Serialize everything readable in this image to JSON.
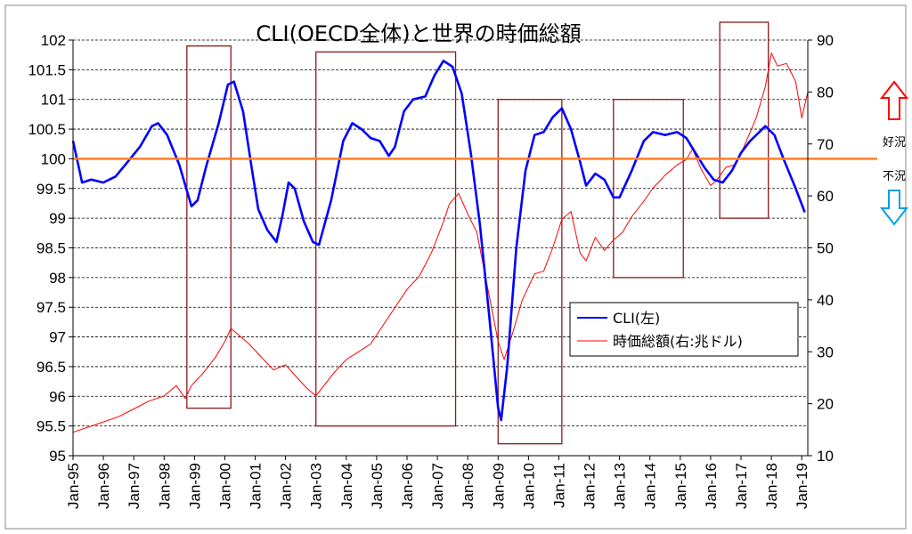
{
  "chart_data": {
    "type": "line",
    "title": "CLI(OECD全体)と世界の時価総額",
    "x_tick_labels": [
      "Jan-95",
      "Jan-96",
      "Jan-97",
      "Jan-98",
      "Jan-99",
      "Jan-00",
      "Jan-01",
      "Jan-02",
      "Jan-03",
      "Jan-04",
      "Jan-05",
      "Jan-06",
      "Jan-07",
      "Jan-08",
      "Jan-09",
      "Jan-10",
      "Jan-11",
      "Jan-12",
      "Jan-13",
      "Jan-14",
      "Jan-15",
      "Jan-16",
      "Jan-17",
      "Jan-18",
      "Jan-19"
    ],
    "left_axis": {
      "min": 95,
      "max": 102,
      "ticks": [
        "95",
        "95.5",
        "96",
        "96.5",
        "97",
        "97.5",
        "98",
        "98.5",
        "99",
        "99.5",
        "100",
        "100.5",
        "101",
        "101.5",
        "102"
      ]
    },
    "right_axis": {
      "min": 10,
      "max": 90,
      "ticks": [
        "10",
        "20",
        "30",
        "40",
        "50",
        "60",
        "70",
        "80",
        "90"
      ]
    },
    "grid": "horizontal-dashed",
    "legend": {
      "position": "center-right",
      "entries": [
        "CLI(左)",
        "時価総額(右:兆ドル)"
      ]
    },
    "reference_line": {
      "value": 100,
      "color": "#ff7f27"
    },
    "side_labels": {
      "up": "好況",
      "down": "不況"
    },
    "colors": {
      "cli": "#0000ff",
      "market_cap": "#ff0000",
      "boxes": "#8b1a1a",
      "up_arrow": "#ff0000",
      "down_arrow": "#00a0e9"
    },
    "series": [
      {
        "name": "CLI(左)",
        "axis": "left",
        "points": [
          [
            1995.0,
            100.3
          ],
          [
            1995.3,
            99.6
          ],
          [
            1995.6,
            99.65
          ],
          [
            1996.0,
            99.6
          ],
          [
            1996.4,
            99.7
          ],
          [
            1996.8,
            99.95
          ],
          [
            1997.2,
            100.2
          ],
          [
            1997.6,
            100.55
          ],
          [
            1997.8,
            100.6
          ],
          [
            1998.1,
            100.4
          ],
          [
            1998.5,
            99.9
          ],
          [
            1998.9,
            99.2
          ],
          [
            1999.1,
            99.3
          ],
          [
            1999.4,
            99.9
          ],
          [
            1999.8,
            100.6
          ],
          [
            2000.1,
            101.25
          ],
          [
            2000.3,
            101.3
          ],
          [
            2000.6,
            100.8
          ],
          [
            2000.9,
            99.8
          ],
          [
            2001.1,
            99.15
          ],
          [
            2001.4,
            98.8
          ],
          [
            2001.7,
            98.6
          ],
          [
            2001.9,
            99.05
          ],
          [
            2002.1,
            99.6
          ],
          [
            2002.3,
            99.5
          ],
          [
            2002.6,
            98.95
          ],
          [
            2002.9,
            98.6
          ],
          [
            2003.1,
            98.55
          ],
          [
            2003.5,
            99.3
          ],
          [
            2003.9,
            100.3
          ],
          [
            2004.2,
            100.6
          ],
          [
            2004.5,
            100.5
          ],
          [
            2004.8,
            100.35
          ],
          [
            2005.1,
            100.3
          ],
          [
            2005.4,
            100.05
          ],
          [
            2005.6,
            100.2
          ],
          [
            2005.9,
            100.8
          ],
          [
            2006.2,
            101.0
          ],
          [
            2006.6,
            101.05
          ],
          [
            2006.9,
            101.4
          ],
          [
            2007.2,
            101.65
          ],
          [
            2007.5,
            101.55
          ],
          [
            2007.8,
            101.1
          ],
          [
            2008.1,
            100.1
          ],
          [
            2008.4,
            98.9
          ],
          [
            2008.7,
            97.4
          ],
          [
            2009.0,
            95.8
          ],
          [
            2009.1,
            95.6
          ],
          [
            2009.3,
            96.5
          ],
          [
            2009.6,
            98.5
          ],
          [
            2009.9,
            99.8
          ],
          [
            2010.2,
            100.4
          ],
          [
            2010.5,
            100.45
          ],
          [
            2010.8,
            100.7
          ],
          [
            2011.1,
            100.85
          ],
          [
            2011.4,
            100.5
          ],
          [
            2011.7,
            99.95
          ],
          [
            2011.9,
            99.55
          ],
          [
            2012.2,
            99.75
          ],
          [
            2012.5,
            99.65
          ],
          [
            2012.8,
            99.35
          ],
          [
            2013.0,
            99.35
          ],
          [
            2013.4,
            99.8
          ],
          [
            2013.8,
            100.3
          ],
          [
            2014.1,
            100.45
          ],
          [
            2014.5,
            100.4
          ],
          [
            2014.9,
            100.45
          ],
          [
            2015.2,
            100.35
          ],
          [
            2015.5,
            100.1
          ],
          [
            2015.8,
            99.85
          ],
          [
            2016.1,
            99.65
          ],
          [
            2016.4,
            99.6
          ],
          [
            2016.7,
            99.8
          ],
          [
            2017.0,
            100.1
          ],
          [
            2017.3,
            100.3
          ],
          [
            2017.6,
            100.45
          ],
          [
            2017.8,
            100.55
          ],
          [
            2018.1,
            100.4
          ],
          [
            2018.4,
            100.0
          ],
          [
            2018.8,
            99.5
          ],
          [
            2019.1,
            99.1
          ]
        ]
      },
      {
        "name": "時価総額(右:兆ドル)",
        "axis": "right",
        "points": [
          [
            1995.0,
            14.5
          ],
          [
            1995.5,
            15.5
          ],
          [
            1996.0,
            16.5
          ],
          [
            1996.5,
            17.5
          ],
          [
            1997.0,
            19.0
          ],
          [
            1997.5,
            20.5
          ],
          [
            1998.0,
            21.5
          ],
          [
            1998.4,
            23.5
          ],
          [
            1998.7,
            21.0
          ],
          [
            1998.9,
            23.5
          ],
          [
            1999.3,
            26.0
          ],
          [
            1999.7,
            29.0
          ],
          [
            2000.0,
            32.0
          ],
          [
            2000.2,
            34.5
          ],
          [
            2000.5,
            33.0
          ],
          [
            2000.8,
            31.5
          ],
          [
            2001.2,
            29.0
          ],
          [
            2001.6,
            26.5
          ],
          [
            2002.0,
            27.5
          ],
          [
            2002.3,
            25.5
          ],
          [
            2002.7,
            23.0
          ],
          [
            2003.0,
            21.5
          ],
          [
            2003.2,
            23.0
          ],
          [
            2003.6,
            26.0
          ],
          [
            2004.0,
            28.5
          ],
          [
            2004.4,
            30.0
          ],
          [
            2004.8,
            31.5
          ],
          [
            2005.2,
            35.0
          ],
          [
            2005.6,
            38.5
          ],
          [
            2006.0,
            42.0
          ],
          [
            2006.4,
            44.5
          ],
          [
            2006.8,
            49.0
          ],
          [
            2007.2,
            55.0
          ],
          [
            2007.4,
            58.5
          ],
          [
            2007.7,
            60.5
          ],
          [
            2008.0,
            56.5
          ],
          [
            2008.3,
            53.0
          ],
          [
            2008.6,
            44.0
          ],
          [
            2008.8,
            38.0
          ],
          [
            2009.0,
            32.0
          ],
          [
            2009.2,
            28.5
          ],
          [
            2009.5,
            34.0
          ],
          [
            2009.8,
            40.0
          ],
          [
            2010.2,
            45.0
          ],
          [
            2010.5,
            45.5
          ],
          [
            2010.8,
            50.0
          ],
          [
            2011.1,
            55.5
          ],
          [
            2011.4,
            57.0
          ],
          [
            2011.7,
            49.0
          ],
          [
            2011.9,
            47.5
          ],
          [
            2012.2,
            52.0
          ],
          [
            2012.5,
            49.5
          ],
          [
            2012.8,
            51.5
          ],
          [
            2013.1,
            53.0
          ],
          [
            2013.4,
            56.0
          ],
          [
            2013.8,
            59.0
          ],
          [
            2014.1,
            61.5
          ],
          [
            2014.5,
            64.0
          ],
          [
            2014.9,
            66.0
          ],
          [
            2015.2,
            67.0
          ],
          [
            2015.4,
            69.0
          ],
          [
            2015.7,
            65.0
          ],
          [
            2016.0,
            62.0
          ],
          [
            2016.2,
            63.0
          ],
          [
            2016.5,
            65.5
          ],
          [
            2016.8,
            66.0
          ],
          [
            2017.1,
            69.5
          ],
          [
            2017.5,
            75.0
          ],
          [
            2017.8,
            81.0
          ],
          [
            2018.0,
            87.5
          ],
          [
            2018.2,
            85.0
          ],
          [
            2018.5,
            85.5
          ],
          [
            2018.8,
            82.0
          ],
          [
            2019.0,
            75.0
          ],
          [
            2019.2,
            80.0
          ]
        ]
      }
    ]
  }
}
